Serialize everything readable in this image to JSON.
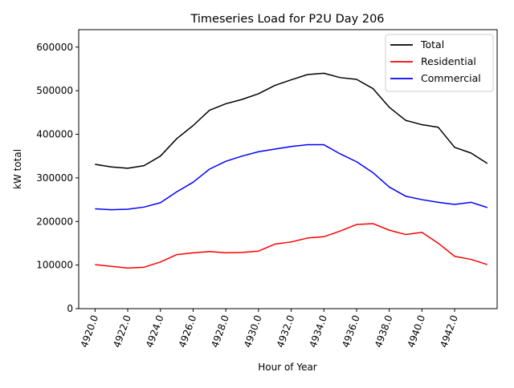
{
  "chart_data": {
    "type": "line",
    "title": "Timeseries Load for P2U   Day 206",
    "xlabel": "Hour of Year",
    "ylabel": "kW total",
    "xlim": [
      4919.0,
      4944.6
    ],
    "ylim": [
      0,
      640000
    ],
    "x_ticks": [
      4920,
      4922,
      4924,
      4926,
      4928,
      4930,
      4932,
      4934,
      4936,
      4938,
      4940,
      4942
    ],
    "x_tick_labels": [
      "4920.0",
      "4922.0",
      "4924.0",
      "4926.0",
      "4928.0",
      "4930.0",
      "4932.0",
      "4934.0",
      "4936.0",
      "4938.0",
      "4940.0",
      "4942.0"
    ],
    "y_ticks": [
      0,
      100000,
      200000,
      300000,
      400000,
      500000,
      600000
    ],
    "y_tick_labels": [
      "0",
      "100000",
      "200000",
      "300000",
      "400000",
      "500000",
      "600000"
    ],
    "grid": false,
    "legend_position": "top-right",
    "x": [
      4920,
      4921,
      4922,
      4923,
      4924,
      4925,
      4926,
      4927,
      4928,
      4929,
      4930,
      4931,
      4932,
      4933,
      4934,
      4935,
      4936,
      4937,
      4938,
      4939,
      4940,
      4941,
      4942,
      4943,
      4944
    ],
    "series": [
      {
        "name": "Total",
        "color": "#000000",
        "values": [
          331000,
          325000,
          322000,
          328000,
          350000,
          390000,
          420000,
          455000,
          470000,
          480000,
          493000,
          512000,
          525000,
          537000,
          540000,
          530000,
          526000,
          505000,
          462000,
          432000,
          422000,
          416000,
          370000,
          357000,
          333000
        ]
      },
      {
        "name": "Residential",
        "color": "#ff0000",
        "values": [
          101000,
          97000,
          93000,
          95000,
          107000,
          124000,
          128000,
          131000,
          128000,
          129000,
          132000,
          148000,
          153000,
          162000,
          165000,
          178000,
          193000,
          195000,
          180000,
          170000,
          175000,
          150000,
          120000,
          113000,
          101000
        ]
      },
      {
        "name": "Commercial",
        "color": "#0000ff",
        "values": [
          229000,
          227000,
          228000,
          233000,
          243000,
          268000,
          290000,
          320000,
          338000,
          350000,
          360000,
          366000,
          372000,
          376000,
          376000,
          355000,
          337000,
          312000,
          279000,
          258000,
          250000,
          244000,
          239000,
          244000,
          232000
        ]
      }
    ]
  }
}
